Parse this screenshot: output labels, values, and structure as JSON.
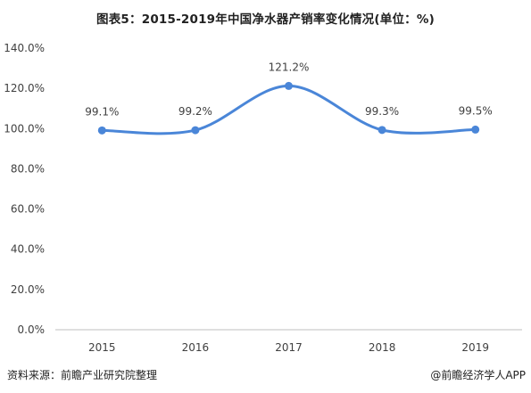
{
  "title": "图表5：2015-2019年中国净水器产销率变化情况(单位：%)",
  "source_text": "资料来源：前瞻产业研究院整理",
  "brand_text": "@前瞻经济学人APP",
  "colors": {
    "line": "#4a86d8",
    "axis": "#bfbfbf",
    "text": "#404040"
  },
  "chart_data": {
    "type": "line",
    "title": "图表5：2015-2019年中国净水器产销率变化情况(单位：%)",
    "categories": [
      "2015",
      "2016",
      "2017",
      "2018",
      "2019"
    ],
    "series": [
      {
        "values": [
          99.1,
          99.2,
          121.2,
          99.3,
          99.5
        ],
        "labels": [
          "99.1%",
          "99.2%",
          "121.2%",
          "99.3%",
          "99.5%"
        ]
      }
    ],
    "yticks": [
      "0.0%",
      "20.0%",
      "40.0%",
      "60.0%",
      "80.0%",
      "100.0%",
      "120.0%",
      "140.0%"
    ],
    "ylim": [
      0,
      140
    ],
    "smooth": true,
    "grid": false,
    "xlabel": "",
    "ylabel": ""
  }
}
